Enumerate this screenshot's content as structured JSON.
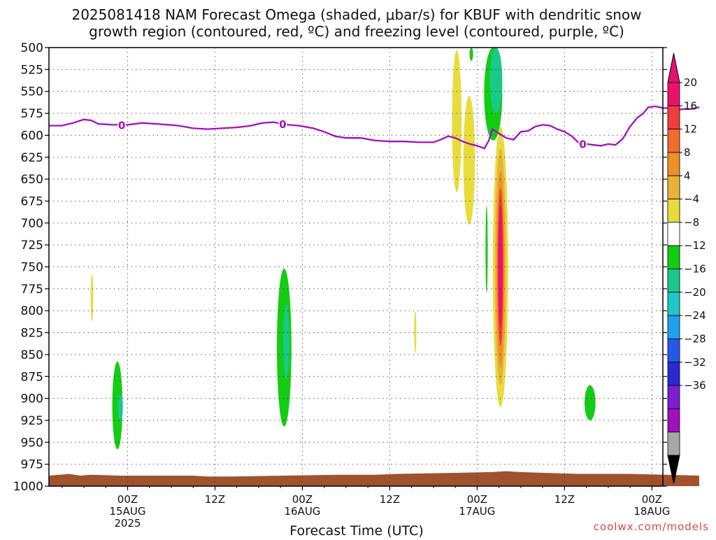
{
  "chart_data": {
    "type": "heatmap",
    "title_lines": [
      "2025081418 NAM Forecast Omega (shaded, μbar/s) for KBUF with dendritic snow",
      "growth region (contoured, red, ºC) and freezing level (contoured, purple, ºC)"
    ],
    "xlabel": "Forecast Time (UTC)",
    "ylabel": "",
    "x_axis": {
      "unit": "hours since 2025-08-14 18Z",
      "range": [
        -4.8,
        79.5
      ],
      "ticks": [
        {
          "hour": 6,
          "lines": [
            "00Z",
            "15AUG",
            "2025"
          ]
        },
        {
          "hour": 18,
          "lines": [
            "12Z"
          ]
        },
        {
          "hour": 30,
          "lines": [
            "00Z",
            "16AUG"
          ]
        },
        {
          "hour": 42,
          "lines": [
            "12Z"
          ]
        },
        {
          "hour": 54,
          "lines": [
            "00Z",
            "17AUG"
          ]
        },
        {
          "hour": 66,
          "lines": [
            "12Z"
          ]
        },
        {
          "hour": 78,
          "lines": [
            "00Z",
            "18AUG"
          ]
        }
      ],
      "dotted_grid_hours": [
        6,
        18,
        30,
        42,
        54,
        66,
        78
      ]
    },
    "y_axis": {
      "unit": "hPa",
      "range": [
        500,
        1000
      ],
      "inverted": true,
      "ticks": [
        500,
        525,
        550,
        575,
        600,
        625,
        650,
        675,
        700,
        725,
        750,
        775,
        800,
        825,
        850,
        875,
        900,
        925,
        950,
        975,
        1000
      ]
    },
    "grid": true,
    "colorbar": {
      "unit": "μbar/s",
      "labels": [
        "20",
        "16",
        "12",
        "8",
        "4",
        "−4",
        "−8",
        "−12",
        "−16",
        "−20",
        "−24",
        "−28",
        "−32",
        "−36"
      ],
      "bins": [
        {
          "color": "#e8116e"
        },
        {
          "color": "#f23c3c"
        },
        {
          "color": "#f46a2e"
        },
        {
          "color": "#ef8f2a"
        },
        {
          "color": "#e8b23a"
        },
        {
          "color": "#e8dc3c"
        },
        {
          "color": "#ffffff"
        },
        {
          "color": "#14cc14"
        },
        {
          "color": "#19c98c"
        },
        {
          "color": "#1ec8c8"
        },
        {
          "color": "#1ea0ee"
        },
        {
          "color": "#2459ea"
        },
        {
          "color": "#2a2ad4"
        },
        {
          "color": "#7a1ed0"
        },
        {
          "color": "#a010c0"
        },
        {
          "color": "#a6a6a6"
        }
      ],
      "top_arrow_color": "#e8116e",
      "bottom_arrow_color": "#000000"
    },
    "omega_regions": [
      {
        "x": 4.6,
        "p_top": 858,
        "p_bottom": 958,
        "width_h": 1.4,
        "color": "#14cc14"
      },
      {
        "x": 5.0,
        "p_top": 895,
        "p_bottom": 925,
        "width_h": 0.7,
        "color": "#19c98c"
      },
      {
        "x": 1.1,
        "p_top": 758,
        "p_bottom": 812,
        "width_h": 0.35,
        "color": "#e8dc3c"
      },
      {
        "x": 27.5,
        "p_top": 752,
        "p_bottom": 932,
        "width_h": 2.0,
        "color": "#14cc14"
      },
      {
        "x": 27.8,
        "p_top": 792,
        "p_bottom": 878,
        "width_h": 0.8,
        "color": "#19c98c"
      },
      {
        "x": 45.5,
        "p_top": 800,
        "p_bottom": 848,
        "width_h": 0.3,
        "color": "#e8dc3c"
      },
      {
        "x": 51.2,
        "p_top": 503,
        "p_bottom": 665,
        "width_h": 1.3,
        "color": "#e8dc3c"
      },
      {
        "x": 52.9,
        "p_top": 555,
        "p_bottom": 702,
        "width_h": 1.6,
        "color": "#e8dc3c"
      },
      {
        "x": 53.2,
        "p_top": 500,
        "p_bottom": 515,
        "width_h": 0.5,
        "color": "#14cc14"
      },
      {
        "x": 56.2,
        "p_top": 500,
        "p_bottom": 606,
        "width_h": 2.5,
        "color": "#14cc14"
      },
      {
        "x": 56.6,
        "p_top": 500,
        "p_bottom": 575,
        "width_h": 1.7,
        "color": "#19c98c"
      },
      {
        "x": 55.3,
        "p_top": 680,
        "p_bottom": 780,
        "width_h": 0.3,
        "color": "#14cc14"
      },
      {
        "x": 57.2,
        "p_top": 590,
        "p_bottom": 910,
        "width_h": 2.1,
        "color": "#e8dc3c"
      },
      {
        "x": 57.2,
        "p_top": 615,
        "p_bottom": 885,
        "width_h": 1.5,
        "color": "#e8b23a"
      },
      {
        "x": 57.2,
        "p_top": 640,
        "p_bottom": 865,
        "width_h": 1.1,
        "color": "#ef8f2a"
      },
      {
        "x": 57.2,
        "p_top": 660,
        "p_bottom": 840,
        "width_h": 0.8,
        "color": "#f23c3c"
      },
      {
        "x": 57.2,
        "p_top": 680,
        "p_bottom": 820,
        "width_h": 0.55,
        "color": "#e8116e"
      },
      {
        "x": 69.5,
        "p_top": 885,
        "p_bottom": 925,
        "width_h": 1.5,
        "color": "#14cc14"
      }
    ],
    "freezing_level": {
      "color": "#a010c0",
      "label": "0",
      "label_hours": [
        5.2,
        27.3,
        68.5
      ],
      "points": [
        [
          -4.8,
          589
        ],
        [
          -3.0,
          589
        ],
        [
          -1.5,
          586
        ],
        [
          0.0,
          582
        ],
        [
          1.0,
          583
        ],
        [
          2.0,
          587
        ],
        [
          4.0,
          588
        ],
        [
          6.0,
          588
        ],
        [
          8.0,
          586
        ],
        [
          10.0,
          587
        ],
        [
          13.0,
          589
        ],
        [
          15.0,
          592
        ],
        [
          17.0,
          593
        ],
        [
          19.0,
          592
        ],
        [
          21.0,
          591
        ],
        [
          23.0,
          589
        ],
        [
          24.5,
          586
        ],
        [
          26.0,
          585
        ],
        [
          28.0,
          588
        ],
        [
          29.5,
          589
        ],
        [
          31.5,
          592
        ],
        [
          33.0,
          596
        ],
        [
          34.5,
          601
        ],
        [
          36.0,
          603
        ],
        [
          38.0,
          603
        ],
        [
          40.0,
          606
        ],
        [
          42.0,
          607
        ],
        [
          44.0,
          607
        ],
        [
          46.0,
          608
        ],
        [
          48.0,
          608
        ],
        [
          49.0,
          605
        ],
        [
          50.0,
          601
        ],
        [
          51.0,
          603
        ],
        [
          52.0,
          607
        ],
        [
          53.0,
          610
        ],
        [
          54.0,
          612
        ],
        [
          55.0,
          615
        ],
        [
          55.6,
          606
        ],
        [
          56.1,
          593
        ],
        [
          57.0,
          598
        ],
        [
          58.0,
          603
        ],
        [
          59.0,
          605
        ],
        [
          60.0,
          596
        ],
        [
          61.0,
          595
        ],
        [
          62.0,
          590
        ],
        [
          63.0,
          588
        ],
        [
          64.0,
          589
        ],
        [
          65.0,
          593
        ],
        [
          66.0,
          596
        ],
        [
          67.0,
          601
        ],
        [
          68.0,
          609
        ],
        [
          69.0,
          610
        ],
        [
          70.0,
          611
        ],
        [
          71.0,
          612
        ],
        [
          72.0,
          610
        ],
        [
          73.0,
          611
        ],
        [
          74.0,
          604
        ],
        [
          75.0,
          590
        ],
        [
          76.0,
          580
        ],
        [
          76.8,
          575
        ],
        [
          77.5,
          568
        ],
        [
          78.5,
          567
        ],
        [
          79.5,
          569
        ],
        [
          80.5,
          569
        ],
        [
          81.5,
          571
        ],
        [
          82.5,
          570
        ],
        [
          83.5,
          570
        ],
        [
          84.5,
          568
        ]
      ]
    },
    "terrain": {
      "color": "#a0522d",
      "points": [
        [
          -4.8,
          988
        ],
        [
          -2.0,
          986
        ],
        [
          -0.5,
          988
        ],
        [
          1.0,
          987
        ],
        [
          5.0,
          988
        ],
        [
          15.0,
          988
        ],
        [
          17.0,
          989
        ],
        [
          20.0,
          989
        ],
        [
          35.0,
          987
        ],
        [
          40.0,
          987
        ],
        [
          43.0,
          986
        ],
        [
          50.0,
          985
        ],
        [
          56.0,
          984
        ],
        [
          58.0,
          983
        ],
        [
          60.0,
          984
        ],
        [
          68.0,
          986
        ],
        [
          75.0,
          986
        ],
        [
          80.0,
          987
        ],
        [
          84.5,
          988
        ]
      ]
    },
    "credit": "coolwx.com/models"
  }
}
